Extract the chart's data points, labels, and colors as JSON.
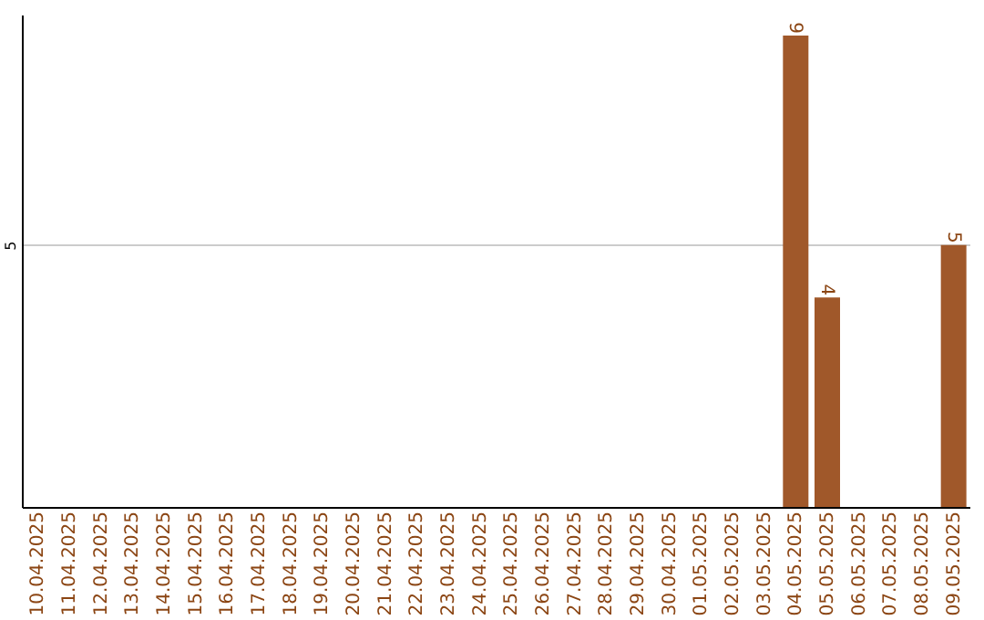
{
  "chart_data": {
    "type": "bar",
    "categories": [
      "10.04.2025",
      "11.04.2025",
      "12.04.2025",
      "13.04.2025",
      "14.04.2025",
      "15.04.2025",
      "16.04.2025",
      "17.04.2025",
      "18.04.2025",
      "19.04.2025",
      "20.04.2025",
      "21.04.2025",
      "22.04.2025",
      "23.04.2025",
      "24.04.2025",
      "25.04.2025",
      "26.04.2025",
      "27.04.2025",
      "28.04.2025",
      "29.04.2025",
      "30.04.2025",
      "01.05.2025",
      "02.05.2025",
      "03.05.2025",
      "04.05.2025",
      "05.05.2025",
      "06.05.2025",
      "07.05.2025",
      "08.05.2025",
      "09.05.2025"
    ],
    "values": [
      null,
      null,
      null,
      null,
      null,
      null,
      null,
      null,
      null,
      null,
      null,
      null,
      null,
      null,
      null,
      null,
      null,
      null,
      null,
      null,
      null,
      null,
      null,
      null,
      9,
      4,
      null,
      null,
      null,
      5
    ],
    "color": "#a0582a",
    "ylim": [
      0,
      9.4
    ],
    "yticks": [
      5
    ],
    "grid": "y",
    "data_labels": true
  }
}
